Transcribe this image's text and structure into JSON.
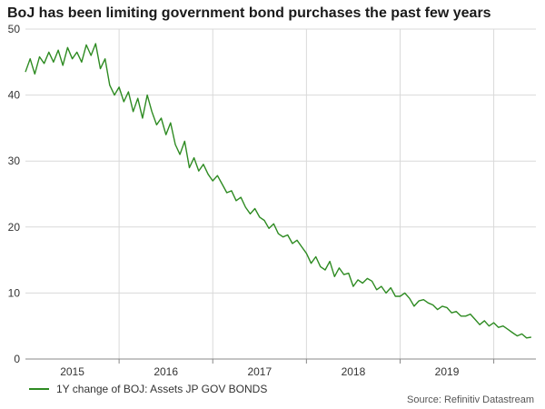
{
  "colors": {
    "line": "#2e8b22",
    "grid": "#d9d9d9",
    "axis": "#888888"
  },
  "chart_data": {
    "type": "line",
    "title": "BoJ has been limiting government bond purchases the past few years",
    "xlabel": "",
    "ylabel": "",
    "ylim": [
      0,
      50
    ],
    "xlim": [
      2014.5,
      2019.95
    ],
    "y_ticks": [
      0,
      10,
      20,
      30,
      40,
      50
    ],
    "x_ticks": [
      2015,
      2016,
      2017,
      2018,
      2019
    ],
    "x_tick_labels": [
      "2015",
      "2016",
      "2017",
      "2018",
      "2019"
    ],
    "grid": true,
    "legend_position": "bottom-left",
    "series": [
      {
        "name": "1Y change of BOJ: Assets JP GOV BONDS",
        "x": [
          2014.5,
          2014.55,
          2014.6,
          2014.65,
          2014.7,
          2014.75,
          2014.8,
          2014.85,
          2014.9,
          2014.95,
          2015.0,
          2015.05,
          2015.1,
          2015.15,
          2015.2,
          2015.25,
          2015.3,
          2015.35,
          2015.4,
          2015.45,
          2015.5,
          2015.55,
          2015.6,
          2015.65,
          2015.7,
          2015.75,
          2015.8,
          2015.85,
          2015.9,
          2015.95,
          2016.0,
          2016.05,
          2016.1,
          2016.15,
          2016.2,
          2016.25,
          2016.3,
          2016.35,
          2016.4,
          2016.45,
          2016.5,
          2016.55,
          2016.6,
          2016.65,
          2016.7,
          2016.75,
          2016.8,
          2016.85,
          2016.9,
          2016.95,
          2017.0,
          2017.05,
          2017.1,
          2017.15,
          2017.2,
          2017.25,
          2017.3,
          2017.35,
          2017.4,
          2017.45,
          2017.5,
          2017.55,
          2017.6,
          2017.65,
          2017.7,
          2017.75,
          2017.8,
          2017.85,
          2017.9,
          2017.95,
          2018.0,
          2018.05,
          2018.1,
          2018.15,
          2018.2,
          2018.25,
          2018.3,
          2018.35,
          2018.4,
          2018.45,
          2018.5,
          2018.55,
          2018.6,
          2018.65,
          2018.7,
          2018.75,
          2018.8,
          2018.85,
          2018.9,
          2018.95,
          2019.0,
          2019.05,
          2019.1,
          2019.15,
          2019.2,
          2019.25,
          2019.3,
          2019.35,
          2019.4,
          2019.45,
          2019.5,
          2019.55,
          2019.6,
          2019.65,
          2019.7,
          2019.75,
          2019.8,
          2019.85,
          2019.9
        ],
        "values": [
          43.5,
          45.5,
          43.2,
          45.8,
          44.8,
          46.5,
          45.0,
          46.8,
          44.5,
          47.2,
          45.5,
          46.5,
          45.0,
          47.6,
          46.0,
          47.8,
          44.0,
          45.5,
          41.5,
          40.0,
          41.2,
          39.0,
          40.5,
          37.5,
          39.5,
          36.5,
          40.0,
          37.5,
          35.5,
          36.5,
          34.0,
          35.8,
          32.5,
          31.0,
          33.0,
          29.0,
          30.5,
          28.5,
          29.5,
          28.0,
          27.0,
          27.8,
          26.5,
          25.2,
          25.5,
          24.0,
          24.5,
          23.0,
          22.0,
          22.8,
          21.5,
          21.0,
          19.8,
          20.5,
          19.0,
          18.5,
          18.8,
          17.5,
          18.0,
          17.0,
          16.0,
          14.5,
          15.5,
          14.0,
          13.5,
          14.8,
          12.5,
          13.8,
          12.8,
          13.0,
          11.0,
          12.0,
          11.5,
          12.2,
          11.8,
          10.5,
          11.0,
          10.0,
          10.8,
          9.5,
          9.5,
          10.0,
          9.2,
          8.0,
          8.8,
          9.0,
          8.5,
          8.2,
          7.5,
          8.0,
          7.8,
          7.0,
          7.2,
          6.5,
          6.5,
          6.8,
          6.0,
          5.2,
          5.8,
          5.0,
          5.5,
          4.8,
          5.0,
          4.5,
          4.0,
          3.5,
          3.8,
          3.2,
          3.3
        ]
      }
    ]
  },
  "legend": {
    "label": "1Y change of BOJ: Assets JP GOV BONDS"
  },
  "source": "Source: Refinitiv Datastream"
}
